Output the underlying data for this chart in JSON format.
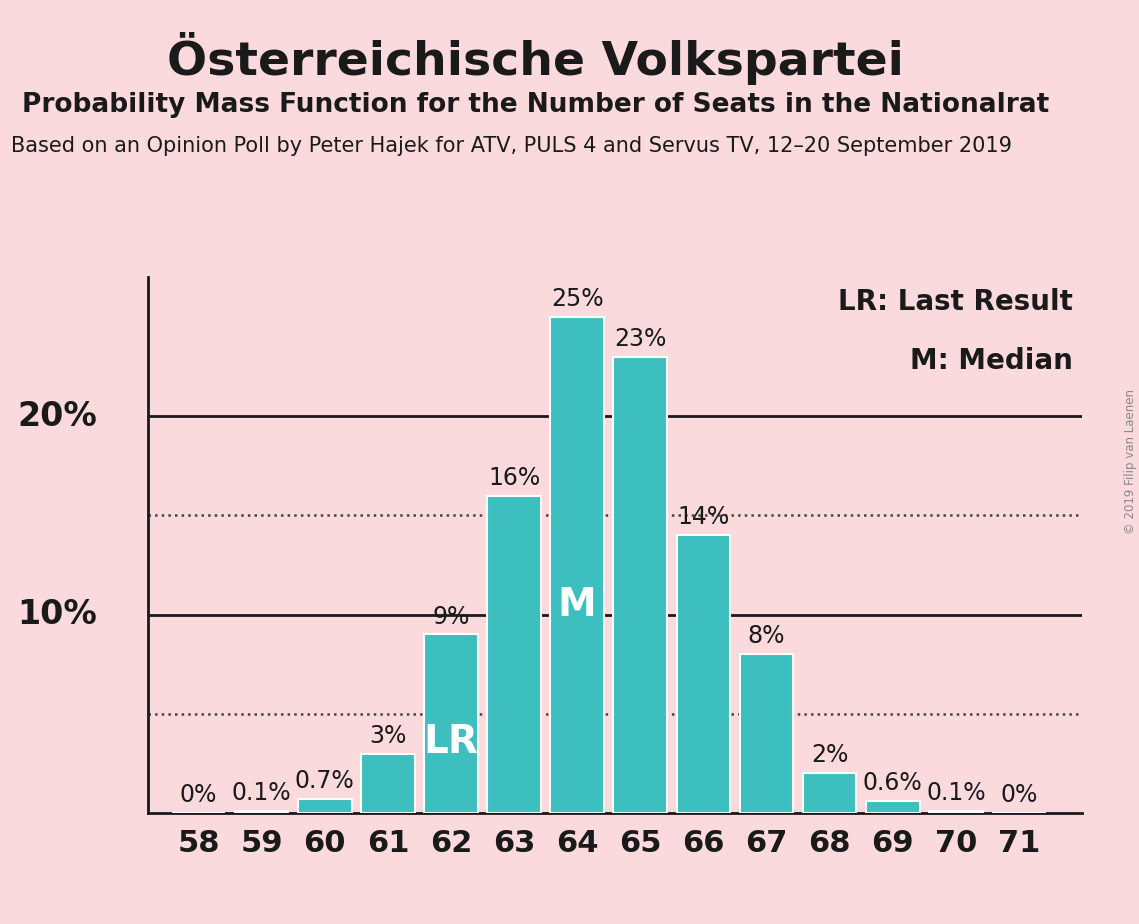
{
  "title": "Österreichische Volkspartei",
  "subtitle": "Probability Mass Function for the Number of Seats in the Nationalrat",
  "subtitle2": "Based on an Opinion Poll by Peter Hajek for ATV, PULS 4 and Servus TV, 12–20 September 2019",
  "seats": [
    58,
    59,
    60,
    61,
    62,
    63,
    64,
    65,
    66,
    67,
    68,
    69,
    70,
    71
  ],
  "probabilities": [
    0.0,
    0.1,
    0.7,
    3.0,
    9.0,
    16.0,
    25.0,
    23.0,
    14.0,
    8.0,
    2.0,
    0.6,
    0.1,
    0.0
  ],
  "bar_color": "#3dbfbf",
  "bar_edge_color": "#ffffff",
  "background_color": "#fadadd",
  "text_color": "#1a1a1a",
  "label_color_on_bar": "#ffffff",
  "label_color_above_bar": "#1a1a1a",
  "median_seat": 64,
  "lr_seat": 62,
  "ylim_max": 27,
  "dotted_lines": [
    5.0,
    15.0
  ],
  "solid_lines": [
    10.0,
    20.0
  ],
  "legend_lr": "LR: Last Result",
  "legend_m": "M: Median",
  "title_fontsize": 34,
  "subtitle_fontsize": 19,
  "subtitle2_fontsize": 15,
  "axis_tick_fontsize": 22,
  "bar_label_fontsize": 17,
  "legend_fontsize": 20,
  "annotation_fontsize": 28,
  "ytick_fontsize": 24,
  "watermark": "© 2019 Filip van Laenen"
}
